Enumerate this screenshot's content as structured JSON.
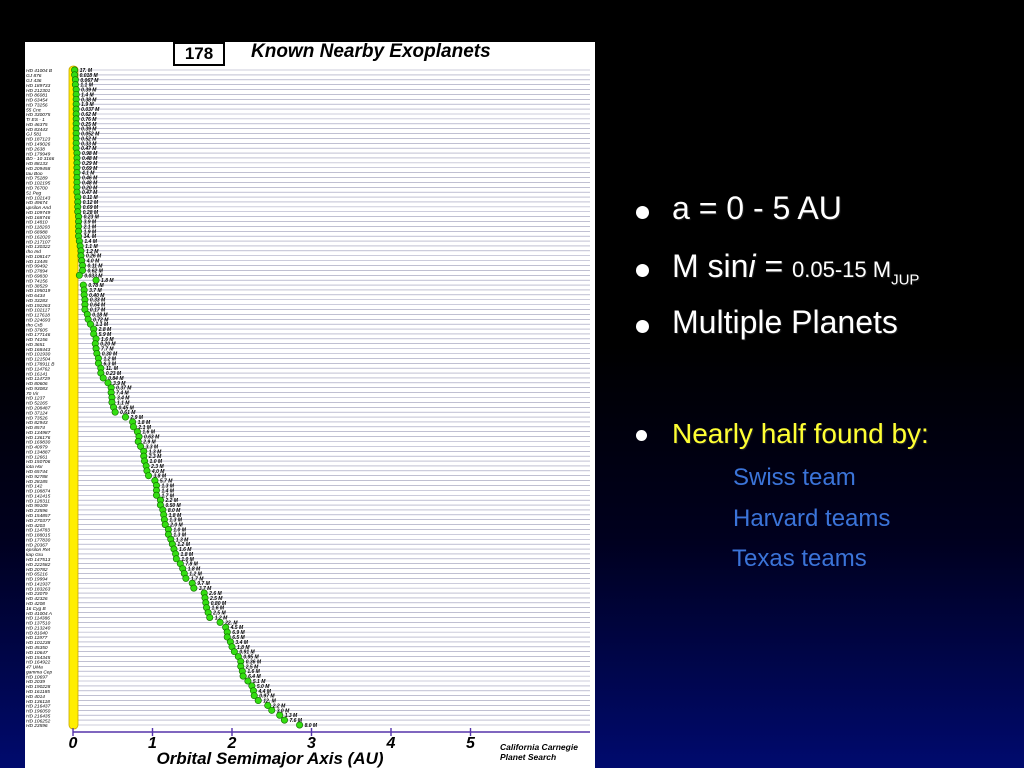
{
  "slide": {
    "bullets": {
      "b1": "a = 0 - 5 AU",
      "b2": {
        "pre": "M sin",
        "ital": "i",
        "eq": " = ",
        "range": "0.05-15 M",
        "sub": "JUP"
      },
      "b3": "Multiple Planets",
      "b4": "Nearly half found by:",
      "subitems": [
        "Swiss team",
        "Harvard teams",
        "Texas teams"
      ]
    },
    "colors": {
      "accent_yellow": "#ffff33",
      "accent_blue": "#3b74d9",
      "planet_green": "#33dd11",
      "star_yellow": "#ffee00"
    }
  },
  "chart_data": {
    "type": "scatter",
    "title": "Known Nearby Exoplanets",
    "count_label": "178",
    "xlabel": "Orbital Semimajor Axis  (AU)",
    "xlim": [
      0,
      6
    ],
    "xticks": [
      "0",
      "1",
      "2",
      "3",
      "4",
      "5"
    ],
    "credit": [
      "California Carnegie",
      "Planet Search"
    ],
    "rows": [
      {
        "star": "HD 41004 B",
        "a": 0.02,
        "m": "17. M"
      },
      {
        "star": "GJ 876",
        "a": 0.02,
        "m": "0.018 M"
      },
      {
        "star": "GJ 436",
        "a": 0.03,
        "m": "0.067 M"
      },
      {
        "star": "HD 189733",
        "a": 0.03,
        "m": "1.1 M"
      },
      {
        "star": "HD 212301",
        "a": 0.04,
        "m": "0.39 M"
      },
      {
        "star": "HD 86081",
        "a": 0.04,
        "m": "1.4 M"
      },
      {
        "star": "HD 63454",
        "a": 0.04,
        "m": "0.38 M"
      },
      {
        "star": "HD 73256",
        "a": 0.04,
        "m": "1.9 M"
      },
      {
        "star": "55 Cnc",
        "a": 0.04,
        "m": "0.037 M"
      },
      {
        "star": "HD 330075",
        "a": 0.04,
        "m": "0.62 M"
      },
      {
        "star": "Tr ES - 1",
        "a": 0.04,
        "m": "0.76 M"
      },
      {
        "star": "HD 46375",
        "a": 0.04,
        "m": "0.25 M"
      },
      {
        "star": "HD 83443",
        "a": 0.04,
        "m": "0.39 M"
      },
      {
        "star": "GJ 581",
        "a": 0.04,
        "m": "0.052 M"
      },
      {
        "star": "HD 187123",
        "a": 0.04,
        "m": "0.52 M"
      },
      {
        "star": "HD 149026",
        "a": 0.04,
        "m": "0.33 M"
      },
      {
        "star": "HD 2638",
        "a": 0.04,
        "m": "0.47 M"
      },
      {
        "star": "HD 179949",
        "a": 0.05,
        "m": "0.98 M"
      },
      {
        "star": "BD - 10 3166",
        "a": 0.05,
        "m": "0.48 M"
      },
      {
        "star": "HD 88133",
        "a": 0.05,
        "m": "0.29 M"
      },
      {
        "star": "HD 209458",
        "a": 0.05,
        "m": "0.69 M"
      },
      {
        "star": "tau Boo",
        "a": 0.05,
        "m": "4.1 M"
      },
      {
        "star": "HD 75289",
        "a": 0.05,
        "m": "0.46 M"
      },
      {
        "star": "HD 102195",
        "a": 0.05,
        "m": "0.48 M"
      },
      {
        "star": "HD 76700",
        "a": 0.05,
        "m": "0.20 M"
      },
      {
        "star": "51 Peg",
        "a": 0.05,
        "m": "0.47 M"
      },
      {
        "star": "HD 102143",
        "a": 0.06,
        "m": "0.11 M"
      },
      {
        "star": "HD 49674",
        "a": 0.06,
        "m": "0.12 M"
      },
      {
        "star": "upsilon And",
        "a": 0.06,
        "m": "0.69 M"
      },
      {
        "star": "HD 109749",
        "a": 0.06,
        "m": "0.28 M"
      },
      {
        "star": "HD 168746",
        "a": 0.07,
        "m": "0.23 M"
      },
      {
        "star": "HD 14810",
        "a": 0.07,
        "m": "3.9 M"
      },
      {
        "star": "HD 118203",
        "a": 0.07,
        "m": "2.1 M"
      },
      {
        "star": "HD 68988",
        "a": 0.07,
        "m": "1.9 M"
      },
      {
        "star": "HD 162020",
        "a": 0.07,
        "m": "14. M"
      },
      {
        "star": "HD 217107",
        "a": 0.08,
        "m": "1.4 M"
      },
      {
        "star": "HD 130322",
        "a": 0.09,
        "m": "1.1 M"
      },
      {
        "star": "rho Ind",
        "a": 0.1,
        "m": "1.2 M"
      },
      {
        "star": "HD 108147",
        "a": 0.1,
        "m": "0.26 M"
      },
      {
        "star": "HD 13445",
        "a": 0.11,
        "m": "4.0 M"
      },
      {
        "star": "HD 99492",
        "a": 0.12,
        "m": "0.11 M"
      },
      {
        "star": "HD 27894",
        "a": 0.12,
        "m": "0.62 M"
      },
      {
        "star": "HD 69830",
        "a": 0.08,
        "m": "0.033 M"
      },
      {
        "star": "HD 74156",
        "a": 0.29,
        "m": "1.8 M"
      },
      {
        "star": "HD 38529",
        "a": 0.13,
        "m": "0.78 M"
      },
      {
        "star": "HD 195019",
        "a": 0.14,
        "m": "3.7 M"
      },
      {
        "star": "HD 6434",
        "a": 0.14,
        "m": "0.40 M"
      },
      {
        "star": "HD 33283",
        "a": 0.15,
        "m": "0.33 M"
      },
      {
        "star": "HD 192263",
        "a": 0.15,
        "m": "0.64 M"
      },
      {
        "star": "HD 102117",
        "a": 0.15,
        "m": "0.17 M"
      },
      {
        "star": "HD 117618",
        "a": 0.18,
        "m": "0.18 M"
      },
      {
        "star": "HD 224693",
        "a": 0.19,
        "m": "0.72 M"
      },
      {
        "star": "rho CrB",
        "a": 0.22,
        "m": "1.1 M"
      },
      {
        "star": "HD 37605",
        "a": 0.26,
        "m": "2.8 M"
      },
      {
        "star": "HD 177146",
        "a": 0.26,
        "m": "5.9 M"
      },
      {
        "star": "HD 74156",
        "a": 0.29,
        "m": "1.6 M"
      },
      {
        "star": "HD 3651",
        "a": 0.28,
        "m": "0.20 M"
      },
      {
        "star": "HD 168443",
        "a": 0.29,
        "m": "7.7 M"
      },
      {
        "star": "HD 101930",
        "a": 0.3,
        "m": "0.30 M"
      },
      {
        "star": "HD 121504",
        "a": 0.32,
        "m": "1.2 M"
      },
      {
        "star": "HD 178911 B",
        "a": 0.32,
        "m": "6.3 M"
      },
      {
        "star": "HD 114762",
        "a": 0.35,
        "m": "11. M"
      },
      {
        "star": "HD 16141",
        "a": 0.35,
        "m": "0.23 M"
      },
      {
        "star": "HD 114729",
        "a": 0.38,
        "m": "0.84 M"
      },
      {
        "star": "HD 80606",
        "a": 0.44,
        "m": "3.9 M"
      },
      {
        "star": "HD 93083",
        "a": 0.48,
        "m": "0.37 M"
      },
      {
        "star": "70 Vir",
        "a": 0.48,
        "m": "7.4 M"
      },
      {
        "star": "HD 1237",
        "a": 0.49,
        "m": "3.4 M"
      },
      {
        "star": "HD 52265",
        "a": 0.49,
        "m": "1.1 M"
      },
      {
        "star": "HD 208487",
        "a": 0.51,
        "m": "0.45 M"
      },
      {
        "star": "HD 37124",
        "a": 0.53,
        "m": "0.61 M"
      },
      {
        "star": "HD 73526",
        "a": 0.66,
        "m": "2.9 M"
      },
      {
        "star": "HD 82943",
        "a": 0.75,
        "m": "1.8 M"
      },
      {
        "star": "HD 8574",
        "a": 0.76,
        "m": "2.1 M"
      },
      {
        "star": "HD 134987",
        "a": 0.81,
        "m": "1.6 M"
      },
      {
        "star": "HD 136176",
        "a": 0.83,
        "m": "0.63 M"
      },
      {
        "star": "HD 169830",
        "a": 0.82,
        "m": "2.9 M"
      },
      {
        "star": "HD 40979",
        "a": 0.85,
        "m": "3.3 M"
      },
      {
        "star": "HD 134887",
        "a": 0.89,
        "m": "1.3 M"
      },
      {
        "star": "HD 12661",
        "a": 0.89,
        "m": "2.3 M"
      },
      {
        "star": "HD 150706",
        "a": 0.9,
        "m": "1.0 M"
      },
      {
        "star": "iota Hor",
        "a": 0.92,
        "m": "2.3 M"
      },
      {
        "star": "HD 65744",
        "a": 0.93,
        "m": "4.0 M"
      },
      {
        "star": "HD 92788",
        "a": 0.95,
        "m": "3.8 M"
      },
      {
        "star": "HD 28185",
        "a": 1.03,
        "m": "5.7 M"
      },
      {
        "star": "HD 142",
        "a": 1.05,
        "m": "1.3 M"
      },
      {
        "star": "HD 108874",
        "a": 1.05,
        "m": "1.4 M"
      },
      {
        "star": "HD 142415",
        "a": 1.05,
        "m": "1.7 M"
      },
      {
        "star": "HD 128311",
        "a": 1.1,
        "m": "2.2 M"
      },
      {
        "star": "HD 99109",
        "a": 1.1,
        "m": "0.50 M"
      },
      {
        "star": "HD 23596",
        "a": 1.13,
        "m": "8.0 M"
      },
      {
        "star": "HD 154857",
        "a": 1.14,
        "m": "1.8 M"
      },
      {
        "star": "HD 270377",
        "a": 1.15,
        "m": "1.3 M"
      },
      {
        "star": "HD 4203",
        "a": 1.16,
        "m": "2.0 M"
      },
      {
        "star": "HD 114783",
        "a": 1.2,
        "m": "1.0 M"
      },
      {
        "star": "HD 188015",
        "a": 1.2,
        "m": "1.3 M"
      },
      {
        "star": "HD 177830",
        "a": 1.23,
        "m": "1.3 M"
      },
      {
        "star": "HD 20367",
        "a": 1.25,
        "m": "1.2 M"
      },
      {
        "star": "epsilon Ret",
        "a": 1.27,
        "m": "1.6 M"
      },
      {
        "star": "kap Gru",
        "a": 1.29,
        "m": "1.8 M"
      },
      {
        "star": "HD 147513",
        "a": 1.3,
        "m": "1.0 M"
      },
      {
        "star": "HD 222582",
        "a": 1.35,
        "m": "7.8 M"
      },
      {
        "star": "HD 20782",
        "a": 1.38,
        "m": "1.8 M"
      },
      {
        "star": "HD 65216",
        "a": 1.4,
        "m": "1.2 M"
      },
      {
        "star": "HD 19994",
        "a": 1.42,
        "m": "1.7 M"
      },
      {
        "star": "HD 141937",
        "a": 1.5,
        "m": "9.7 M"
      },
      {
        "star": "HD 183263",
        "a": 1.52,
        "m": "3.7 M"
      },
      {
        "star": "HD 23079",
        "a": 1.65,
        "m": "2.6 M"
      },
      {
        "star": "HD 42326",
        "a": 1.66,
        "m": "2.5 M"
      },
      {
        "star": "HD 4208",
        "a": 1.67,
        "m": "0.80 M"
      },
      {
        "star": "16 Cyg B",
        "a": 1.68,
        "m": "1.6 M"
      },
      {
        "star": "HD 41004 A",
        "a": 1.7,
        "m": "2.5 M"
      },
      {
        "star": "HD 114386",
        "a": 1.72,
        "m": "1.2 M"
      },
      {
        "star": "HD 137510",
        "a": 1.85,
        "m": "22. M"
      },
      {
        "star": "HD 213240",
        "a": 1.92,
        "m": "4.5 M"
      },
      {
        "star": "HD 81040",
        "a": 1.94,
        "m": "6.9 M"
      },
      {
        "star": "HD 11977",
        "a": 1.94,
        "m": "6.5 M"
      },
      {
        "star": "HD 101238",
        "a": 1.98,
        "m": "3.4 M"
      },
      {
        "star": "HD 45350",
        "a": 2.0,
        "m": "1.8 M"
      },
      {
        "star": "HD 10647",
        "a": 2.03,
        "m": "0.91 M"
      },
      {
        "star": "HD 154345",
        "a": 2.08,
        "m": "0.95 M"
      },
      {
        "star": "HD 164922",
        "a": 2.11,
        "m": "0.36 M"
      },
      {
        "star": "47 UMa",
        "a": 2.11,
        "m": "2.5 M"
      },
      {
        "star": "gamma Cep",
        "a": 2.13,
        "m": "1.6 M"
      },
      {
        "star": "HD 10697",
        "a": 2.14,
        "m": "6.4 M"
      },
      {
        "star": "HD 2039",
        "a": 2.2,
        "m": "5.1 M"
      },
      {
        "star": "HD 190228",
        "a": 2.25,
        "m": "5.0 M"
      },
      {
        "star": "HD 161185",
        "a": 2.27,
        "m": "4.4 M"
      },
      {
        "star": "HD 4014",
        "a": 2.28,
        "m": "0.97 M"
      },
      {
        "star": "HD 136118",
        "a": 2.33,
        "m": "12. M"
      },
      {
        "star": "HD 216437",
        "a": 2.45,
        "m": "2.2 M"
      },
      {
        "star": "HD 196050",
        "a": 2.5,
        "m": "3.0 M"
      },
      {
        "star": "HD 216435",
        "a": 2.6,
        "m": "1.3 M"
      },
      {
        "star": "HD 106252",
        "a": 2.66,
        "m": "7.6 M"
      },
      {
        "star": "HD 23596",
        "a": 2.85,
        "m": "8.0 M"
      }
    ]
  }
}
